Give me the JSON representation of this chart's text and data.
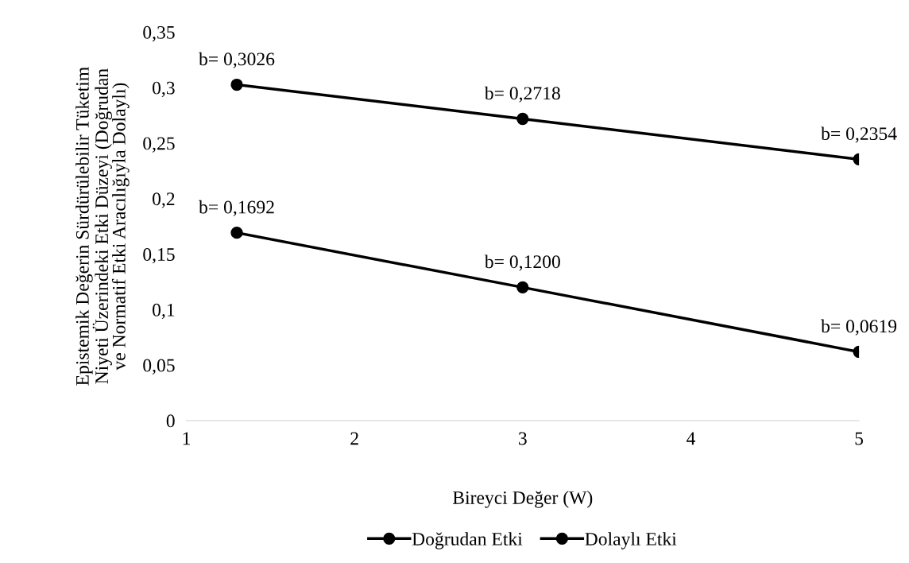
{
  "chart_data": {
    "type": "line",
    "xlabel": "Bireyci Değer (W)",
    "ylabel": "Epistemik Değerin Sürdürülebilir Tüketim\nNiyeti Üzerindeki Etki Düzeyi (Doğrudan\nve Normatif Etki Aracılığıyla Dolaylı)",
    "x": [
      1.3,
      3,
      5
    ],
    "series": [
      {
        "name": "Doğrudan Etki",
        "color": "#000000",
        "values": [
          0.3026,
          0.2718,
          0.2354
        ],
        "value_labels": [
          "b= 0,3026",
          "b= 0,2718",
          "b= 0,2354"
        ]
      },
      {
        "name": "Dolaylı Etki",
        "color": "#000000",
        "values": [
          0.1692,
          0.12,
          0.0619
        ],
        "value_labels": [
          "b= 0,1692",
          "b= 0,1200",
          "b= 0,0619"
        ]
      }
    ],
    "xlim": [
      1,
      5
    ],
    "xticks": [
      1,
      2,
      3,
      4,
      5
    ],
    "ylim": [
      0,
      0.35
    ],
    "yticks": [
      0,
      {
        "value": 0.05,
        "label": "0,05"
      },
      {
        "value": 0.1,
        "label": "0,1"
      },
      {
        "value": 0.15,
        "label": "0,15"
      },
      {
        "value": 0.2,
        "label": "0,2"
      },
      {
        "value": 0.25,
        "label": "0,25"
      },
      {
        "value": 0.3,
        "label": "0,3"
      },
      {
        "value": 0.35,
        "label": "0,35"
      }
    ],
    "grid": false,
    "legend": "bottom",
    "marker": "circle",
    "line_style": "solid"
  }
}
